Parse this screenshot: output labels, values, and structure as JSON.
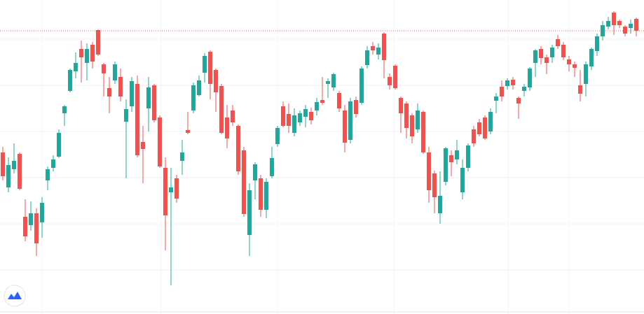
{
  "chart_data": {
    "type": "candlestick",
    "ylim": [
      0,
      449
    ],
    "up_color": "#26a69a",
    "down_color": "#ef5350",
    "last_price": 405,
    "last_price_color": "#ef5350",
    "open": [
      231,
      181,
      207,
      229,
      139,
      127,
      144,
      131,
      191,
      209,
      225,
      287,
      319,
      347,
      379,
      359,
      385,
      406,
      357,
      323,
      334,
      339,
      275,
      297,
      329,
      246,
      294,
      327,
      281,
      209,
      174,
      194,
      219,
      263,
      291,
      313,
      345,
      375,
      349,
      326,
      281,
      291,
      269,
      234,
      113,
      191,
      194,
      149,
      197,
      243,
      297,
      286,
      259,
      274,
      282,
      289,
      291,
      306,
      329,
      324,
      316,
      291,
      249,
      306,
      302,
      356,
      383,
      371,
      401,
      339,
      355,
      309,
      301,
      284,
      264,
      289,
      231,
      201,
      144,
      189,
      227,
      221,
      174,
      209,
      264,
      274,
      281,
      261,
      305,
      325,
      326,
      335,
      309,
      319,
      324,
      359,
      379,
      367,
      367,
      393,
      385,
      364,
      357,
      327,
      329,
      354,
      376,
      397,
      411,
      431,
      419,
      411,
      409,
      422
    ],
    "high": [
      239,
      224,
      244,
      231,
      164,
      161,
      151,
      167,
      211,
      227,
      264,
      299,
      351,
      374,
      391,
      387,
      389,
      407,
      359,
      339,
      361,
      351,
      307,
      339,
      341,
      269,
      339,
      329,
      284,
      224,
      209,
      199,
      249,
      289,
      331,
      341,
      373,
      377,
      351,
      329,
      299,
      299,
      271,
      239,
      187,
      217,
      199,
      194,
      239,
      269,
      304,
      301,
      294,
      291,
      299,
      295,
      309,
      339,
      337,
      345,
      319,
      299,
      309,
      311,
      354,
      383,
      389,
      387,
      403,
      344,
      357,
      311,
      304,
      287,
      301,
      291,
      239,
      205,
      204,
      239,
      234,
      249,
      221,
      244,
      269,
      279,
      284,
      294,
      316,
      334,
      337,
      339,
      311,
      329,
      353,
      379,
      383,
      371,
      385,
      399,
      389,
      369,
      361,
      349,
      361,
      381,
      401,
      419,
      425,
      433,
      421,
      413,
      421,
      424
    ],
    "low": [
      191,
      174,
      201,
      177,
      104,
      119,
      83,
      109,
      177,
      204,
      223,
      269,
      317,
      337,
      331,
      334,
      351,
      369,
      311,
      287,
      329,
      304,
      194,
      289,
      224,
      187,
      261,
      274,
      209,
      91,
      41,
      159,
      199,
      257,
      287,
      311,
      331,
      307,
      289,
      257,
      237,
      269,
      199,
      139,
      83,
      164,
      139,
      137,
      194,
      239,
      267,
      259,
      254,
      269,
      267,
      271,
      284,
      299,
      309,
      319,
      289,
      231,
      244,
      281,
      299,
      351,
      371,
      364,
      337,
      321,
      321,
      259,
      251,
      244,
      259,
      229,
      159,
      144,
      129,
      184,
      197,
      214,
      164,
      204,
      239,
      254,
      249,
      257,
      287,
      304,
      321,
      321,
      279,
      311,
      319,
      339,
      357,
      343,
      359,
      379,
      363,
      347,
      339,
      304,
      311,
      349,
      369,
      391,
      407,
      399,
      409,
      397,
      401,
      397
    ],
    "close": [
      197,
      213,
      219,
      179,
      111,
      144,
      101,
      159,
      207,
      221,
      259,
      297,
      349,
      359,
      367,
      379,
      361,
      371,
      344,
      311,
      357,
      311,
      293,
      333,
      227,
      236,
      324,
      277,
      211,
      141,
      181,
      165,
      231,
      259,
      327,
      334,
      369,
      329,
      317,
      259,
      251,
      274,
      204,
      143,
      177,
      214,
      149,
      189,
      223,
      266,
      269,
      269,
      284,
      287,
      293,
      277,
      303,
      302,
      333,
      343,
      294,
      245,
      304,
      286,
      351,
      377,
      377,
      381,
      363,
      327,
      323,
      287,
      266,
      254,
      291,
      231,
      177,
      167,
      169,
      237,
      217,
      234,
      209,
      241,
      244,
      257,
      251,
      289,
      311,
      311,
      334,
      327,
      301,
      325,
      351,
      377,
      366,
      359,
      381,
      383,
      367,
      357,
      352,
      315,
      357,
      379,
      397,
      413,
      419,
      413,
      413,
      401,
      415,
      405
    ]
  }
}
